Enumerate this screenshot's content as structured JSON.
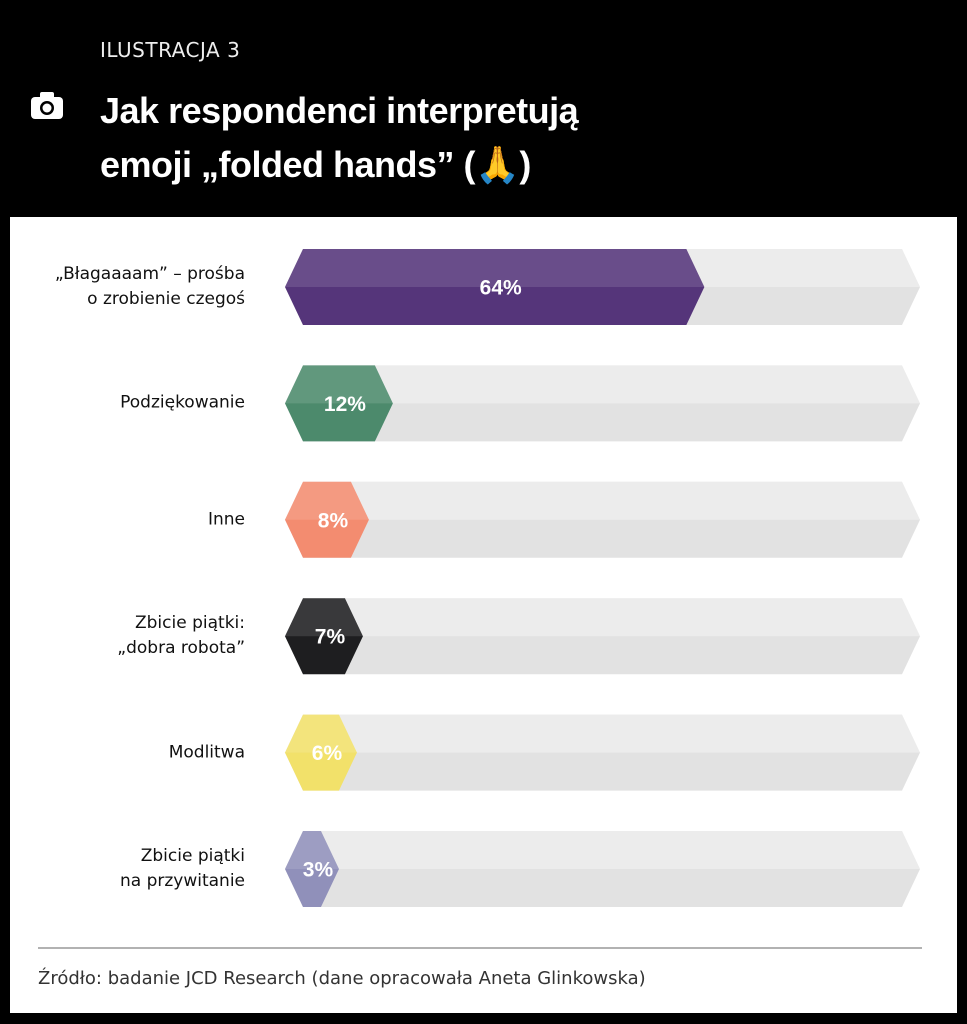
{
  "header": {
    "label": "ILUSTRACJA 3"
  },
  "chart_data": {
    "type": "bar",
    "title": "Jak respondenci interpretują\nemoji „folded hands” (🙏)",
    "categories": [
      "„Błagaaaam” – prośba\no zrobienie czegoś",
      "Podziękowanie",
      "Inne",
      "Zbicie piątki:\n„dobra robota”",
      "Modlitwa",
      "Zbicie piątki\nna przywitanie"
    ],
    "values": [
      64,
      12,
      8,
      7,
      6,
      3
    ],
    "value_labels": [
      "64%",
      "12%",
      "8%",
      "7%",
      "6%",
      "3%"
    ],
    "colors": [
      "#55357a",
      "#4c8a6c",
      "#f38c70",
      "#1e1e20",
      "#f2e16a",
      "#9090ba"
    ],
    "xlim": [
      0,
      100
    ],
    "source": "Źródło: badanie JCD Research (dane opracowała Aneta Glinkowska)"
  }
}
